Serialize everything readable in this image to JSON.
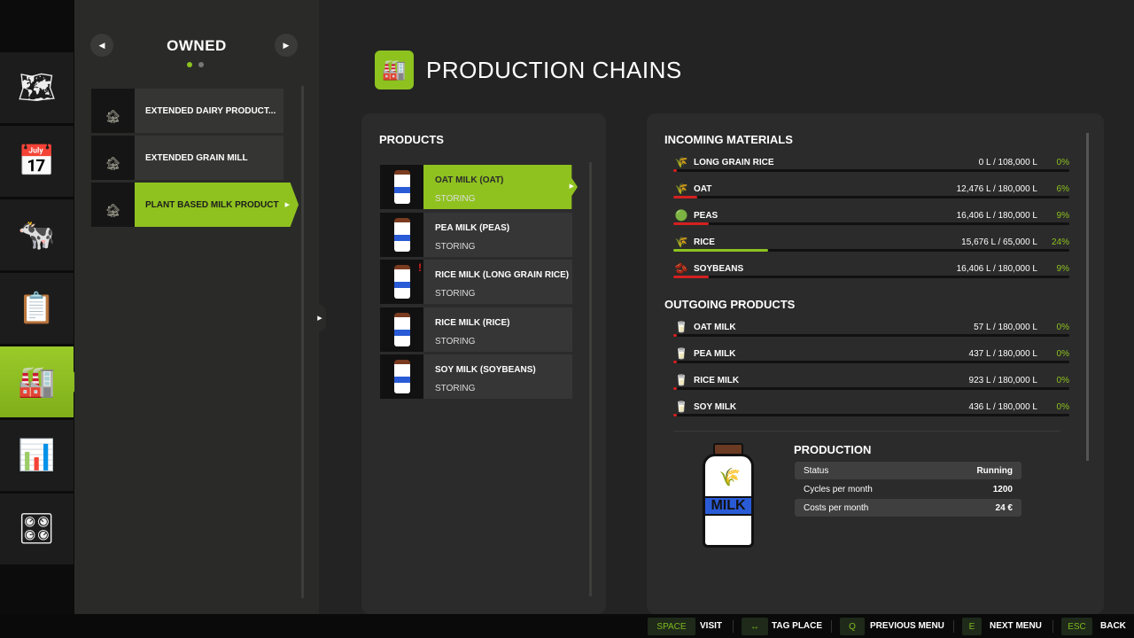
{
  "sidebar": {
    "items": [
      {
        "icon": "map-icon",
        "glyph": "🗺"
      },
      {
        "icon": "calendar-icon",
        "glyph": "📅"
      },
      {
        "icon": "cow-icon",
        "glyph": "🐄"
      },
      {
        "icon": "contracts-icon",
        "glyph": "📋"
      },
      {
        "icon": "production-icon",
        "glyph": "🏭",
        "active": true
      },
      {
        "icon": "statistics-icon",
        "glyph": "📊"
      },
      {
        "icon": "settings-icon",
        "glyph": "🎛"
      }
    ]
  },
  "left": {
    "title": "OWNED",
    "prev": "◀",
    "next": "▶",
    "places": [
      {
        "label": "EXTENDED DAIRY PRODUCT..."
      },
      {
        "label": "EXTENDED GRAIN MILL"
      },
      {
        "label": "PLANT BASED MILK PRODUCT",
        "active": true
      }
    ]
  },
  "header": {
    "title": "PRODUCTION CHAINS",
    "icon": "production-chain-icon"
  },
  "products": {
    "title": "PRODUCTS",
    "items": [
      {
        "name": "OAT MILK (OAT)",
        "status": "STORING",
        "active": true
      },
      {
        "name": "PEA MILK (PEAS)",
        "status": "STORING"
      },
      {
        "name": "RICE MILK (LONG GRAIN RICE)",
        "status": "STORING",
        "warning": "!"
      },
      {
        "name": "RICE MILK (RICE)",
        "status": "STORING"
      },
      {
        "name": "SOY MILK (SOYBEANS)",
        "status": "STORING"
      }
    ]
  },
  "incoming": {
    "title": "INCOMING MATERIALS",
    "items": [
      {
        "name": "LONG GRAIN RICE",
        "amount": "0 L / 108,000 L",
        "percent": "0%",
        "fill": 0,
        "icon": "rice-icon",
        "glyph": "🌾"
      },
      {
        "name": "OAT",
        "amount": "12,476 L / 180,000 L",
        "percent": "6%",
        "fill": 6,
        "icon": "oat-icon",
        "glyph": "🌾"
      },
      {
        "name": "PEAS",
        "amount": "16,406 L / 180,000 L",
        "percent": "9%",
        "fill": 9,
        "icon": "peas-icon",
        "glyph": "🟢"
      },
      {
        "name": "RICE",
        "amount": "15,676 L / 65,000 L",
        "percent": "24%",
        "fill": 24,
        "icon": "rice-icon",
        "glyph": "🌾",
        "ok": true
      },
      {
        "name": "SOYBEANS",
        "amount": "16,406 L / 180,000 L",
        "percent": "9%",
        "fill": 9,
        "icon": "soybeans-icon",
        "glyph": "🫘"
      }
    ]
  },
  "outgoing": {
    "title": "OUTGOING PRODUCTS",
    "items": [
      {
        "name": "OAT MILK",
        "amount": "57 L / 180,000 L",
        "percent": "0%",
        "fill": 0
      },
      {
        "name": "PEA MILK",
        "amount": "437 L / 180,000 L",
        "percent": "0%",
        "fill": 0
      },
      {
        "name": "RICE MILK",
        "amount": "923 L / 180,000 L",
        "percent": "0%",
        "fill": 0
      },
      {
        "name": "SOY MILK",
        "amount": "436 L / 180,000 L",
        "percent": "0%",
        "fill": 0
      }
    ]
  },
  "production": {
    "title": "PRODUCTION",
    "bottle_label": "MILK",
    "stats": [
      {
        "label": "Status",
        "value": "Running"
      },
      {
        "label": "Cycles per month",
        "value": "1200"
      },
      {
        "label": "Costs per month",
        "value": "24 €"
      }
    ]
  },
  "footer": [
    {
      "key": "SPACE",
      "label": "VISIT"
    },
    {
      "key": "↔",
      "label": "TAG PLACE"
    },
    {
      "key": "Q",
      "label": "PREVIOUS MENU"
    },
    {
      "key": "E",
      "label": "NEXT MENU"
    },
    {
      "key": "ESC",
      "label": "BACK"
    }
  ]
}
